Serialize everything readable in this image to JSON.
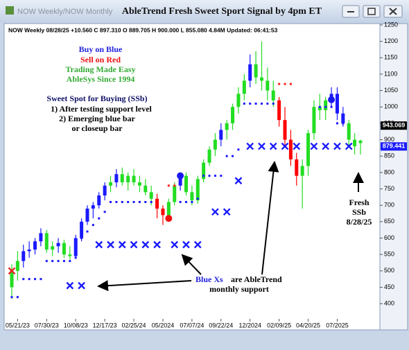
{
  "window": {
    "tabs": "NOW Weekly/NOW Monthly",
    "title": "AbleTrend Fresh Sweet Sport Signal by 4pm ET"
  },
  "chart_data": {
    "type": "candlestick",
    "info_line": "NOW  Weekly 08/28/25 +10.560 C 897.310 O 889.705 H 900.000 L 855.080 4.84M Updated: 06:41:53",
    "categories": [
      null,
      "05/21/23",
      null,
      null,
      null,
      null,
      "07/30/23",
      null,
      null,
      null,
      null,
      "10/08/23",
      null,
      null,
      null,
      null,
      "12/17/23",
      null,
      null,
      null,
      null,
      "02/25/24",
      null,
      null,
      null,
      null,
      "05/2024",
      null,
      null,
      null,
      null,
      "07/07/24",
      null,
      null,
      null,
      null,
      "09/22/24",
      null,
      null,
      null,
      null,
      "12/2024",
      null,
      null,
      null,
      null,
      "02/09/25",
      null,
      null,
      null,
      null,
      "04/20/25",
      null,
      null,
      null,
      null,
      "07/2025",
      null,
      null,
      null,
      null
    ],
    "candles": [
      {
        "o": 450,
        "h": 520,
        "l": 415,
        "c": 500,
        "color": "#22dd22"
      },
      {
        "o": 500,
        "h": 560,
        "l": 470,
        "c": 530,
        "color": "#22dd22"
      },
      {
        "o": 530,
        "h": 580,
        "l": 510,
        "c": 560,
        "color": "#1a1aff"
      },
      {
        "o": 560,
        "h": 590,
        "l": 540,
        "c": 565,
        "color": "#1a1aff"
      },
      {
        "o": 565,
        "h": 600,
        "l": 550,
        "c": 590,
        "color": "#1a1aff"
      },
      {
        "o": 590,
        "h": 630,
        "l": 575,
        "c": 615,
        "color": "#1a1aff"
      },
      {
        "o": 615,
        "h": 625,
        "l": 555,
        "c": 565,
        "color": "#22dd22"
      },
      {
        "o": 565,
        "h": 590,
        "l": 545,
        "c": 575,
        "color": "#22dd22"
      },
      {
        "o": 575,
        "h": 600,
        "l": 555,
        "c": 585,
        "color": "#1a1aff"
      },
      {
        "o": 585,
        "h": 595,
        "l": 540,
        "c": 550,
        "color": "#22dd22"
      },
      {
        "o": 550,
        "h": 575,
        "l": 535,
        "c": 545,
        "color": "#22dd22"
      },
      {
        "o": 545,
        "h": 610,
        "l": 540,
        "c": 600,
        "color": "#1a1aff"
      },
      {
        "o": 600,
        "h": 660,
        "l": 590,
        "c": 650,
        "color": "#1a1aff"
      },
      {
        "o": 650,
        "h": 700,
        "l": 640,
        "c": 690,
        "color": "#1a1aff"
      },
      {
        "o": 690,
        "h": 710,
        "l": 660,
        "c": 700,
        "color": "#1a1aff"
      },
      {
        "o": 700,
        "h": 740,
        "l": 690,
        "c": 730,
        "color": "#1a1aff"
      },
      {
        "o": 730,
        "h": 770,
        "l": 715,
        "c": 760,
        "color": "#1a1aff"
      },
      {
        "o": 760,
        "h": 790,
        "l": 740,
        "c": 770,
        "color": "#22dd22"
      },
      {
        "o": 770,
        "h": 810,
        "l": 755,
        "c": 795,
        "color": "#1a1aff"
      },
      {
        "o": 795,
        "h": 815,
        "l": 760,
        "c": 770,
        "color": "#22dd22"
      },
      {
        "o": 770,
        "h": 800,
        "l": 745,
        "c": 790,
        "color": "#22dd22"
      },
      {
        "o": 790,
        "h": 810,
        "l": 760,
        "c": 770,
        "color": "#22dd22"
      },
      {
        "o": 770,
        "h": 790,
        "l": 740,
        "c": 760,
        "color": "#22dd22"
      },
      {
        "o": 760,
        "h": 780,
        "l": 730,
        "c": 740,
        "color": "#22dd22"
      },
      {
        "o": 740,
        "h": 760,
        "l": 700,
        "c": 720,
        "color": "#22dd22"
      },
      {
        "o": 720,
        "h": 735,
        "l": 660,
        "c": 690,
        "color": "#ff0000"
      },
      {
        "o": 690,
        "h": 700,
        "l": 640,
        "c": 670,
        "color": "#ff0000"
      },
      {
        "o": 670,
        "h": 720,
        "l": 650,
        "c": 710,
        "color": "#22dd22"
      },
      {
        "o": 710,
        "h": 770,
        "l": 700,
        "c": 760,
        "color": "#22dd22"
      },
      {
        "o": 760,
        "h": 800,
        "l": 745,
        "c": 790,
        "color": "#1a1aff"
      },
      {
        "o": 790,
        "h": 800,
        "l": 730,
        "c": 740,
        "color": "#22dd22"
      },
      {
        "o": 740,
        "h": 760,
        "l": 700,
        "c": 715,
        "color": "#22dd22"
      },
      {
        "o": 715,
        "h": 790,
        "l": 705,
        "c": 780,
        "color": "#22dd22"
      },
      {
        "o": 780,
        "h": 840,
        "l": 770,
        "c": 830,
        "color": "#22dd22"
      },
      {
        "o": 830,
        "h": 880,
        "l": 820,
        "c": 870,
        "color": "#22dd22"
      },
      {
        "o": 870,
        "h": 920,
        "l": 850,
        "c": 900,
        "color": "#22dd22"
      },
      {
        "o": 900,
        "h": 950,
        "l": 880,
        "c": 930,
        "color": "#1a1aff"
      },
      {
        "o": 930,
        "h": 960,
        "l": 900,
        "c": 950,
        "color": "#22dd22"
      },
      {
        "o": 950,
        "h": 1010,
        "l": 930,
        "c": 1000,
        "color": "#22dd22"
      },
      {
        "o": 1000,
        "h": 1060,
        "l": 980,
        "c": 1040,
        "color": "#22dd22"
      },
      {
        "o": 1040,
        "h": 1100,
        "l": 1020,
        "c": 1080,
        "color": "#22dd22"
      },
      {
        "o": 1080,
        "h": 1160,
        "l": 1060,
        "c": 1130,
        "color": "#1a1aff"
      },
      {
        "o": 1130,
        "h": 1170,
        "l": 1070,
        "c": 1090,
        "color": "#22dd22"
      },
      {
        "o": 1090,
        "h": 1200,
        "l": 1050,
        "c": 1080,
        "color": "#22dd22"
      },
      {
        "o": 1080,
        "h": 1120,
        "l": 1020,
        "c": 1050,
        "color": "#22dd22"
      },
      {
        "o": 1050,
        "h": 1080,
        "l": 1000,
        "c": 1020,
        "color": "#22dd22"
      },
      {
        "o": 1020,
        "h": 1030,
        "l": 940,
        "c": 960,
        "color": "#ff0000"
      },
      {
        "o": 960,
        "h": 1000,
        "l": 880,
        "c": 900,
        "color": "#ff0000"
      },
      {
        "o": 900,
        "h": 930,
        "l": 820,
        "c": 840,
        "color": "#ff0000"
      },
      {
        "o": 840,
        "h": 860,
        "l": 760,
        "c": 790,
        "color": "#ff0000"
      },
      {
        "o": 790,
        "h": 840,
        "l": 690,
        "c": 820,
        "color": "#22dd22"
      },
      {
        "o": 820,
        "h": 930,
        "l": 790,
        "c": 920,
        "color": "#22dd22"
      },
      {
        "o": 920,
        "h": 1020,
        "l": 900,
        "c": 1000,
        "color": "#22dd22"
      },
      {
        "o": 1000,
        "h": 1040,
        "l": 960,
        "c": 990,
        "color": "#22dd22"
      },
      {
        "o": 990,
        "h": 1030,
        "l": 960,
        "c": 1020,
        "color": "#22dd22"
      },
      {
        "o": 1020,
        "h": 1060,
        "l": 1000,
        "c": 1040,
        "color": "#1a1aff"
      },
      {
        "o": 1040,
        "h": 1060,
        "l": 960,
        "c": 980,
        "color": "#1a1aff"
      },
      {
        "o": 980,
        "h": 1000,
        "l": 940,
        "c": 950,
        "color": "#1a1aff"
      },
      {
        "o": 950,
        "h": 960,
        "l": 880,
        "c": 900,
        "color": "#22dd22"
      },
      {
        "o": 900,
        "h": 920,
        "l": 855,
        "c": 880,
        "color": "#22dd22"
      },
      {
        "o": 889.705,
        "h": 900,
        "l": 855.08,
        "c": 897.31,
        "color": "#22dd22"
      }
    ],
    "support_dots": {
      "color": "#1a1aff",
      "values": [
        420,
        420,
        475,
        475,
        475,
        475,
        530,
        530,
        530,
        530,
        530,
        540,
        600,
        620,
        640,
        660,
        680,
        710,
        710,
        710,
        710,
        710,
        710,
        710,
        710,
        null,
        null,
        null,
        null,
        710,
        710,
        710,
        720,
        790,
        790,
        790,
        790,
        850,
        850,
        870,
        1010,
        1010,
        1010,
        1010,
        1010,
        1010,
        null,
        null,
        null,
        null,
        null,
        null,
        null,
        1000,
        1000,
        1000,
        950,
        950,
        null,
        null,
        null
      ]
    },
    "resistance_dots": {
      "color": "#ff2222",
      "values": [
        null,
        null,
        null,
        null,
        null,
        null,
        null,
        null,
        null,
        null,
        null,
        null,
        null,
        null,
        null,
        null,
        null,
        null,
        null,
        null,
        null,
        null,
        null,
        null,
        null,
        null,
        null,
        760,
        760,
        null,
        null,
        null,
        null,
        null,
        null,
        null,
        null,
        null,
        null,
        null,
        null,
        null,
        null,
        null,
        null,
        null,
        1070,
        1070,
        1070,
        null,
        null,
        null,
        null,
        null,
        null,
        null,
        null,
        null,
        null,
        null,
        null
      ]
    },
    "monthly_support": {
      "color": "#1a1aff",
      "values": [
        null,
        null,
        null,
        null,
        null,
        null,
        null,
        null,
        null,
        null,
        455,
        null,
        455,
        null,
        null,
        580,
        null,
        580,
        null,
        580,
        null,
        580,
        null,
        580,
        null,
        580,
        null,
        null,
        580,
        null,
        580,
        null,
        580,
        null,
        null,
        680,
        null,
        680,
        null,
        775,
        null,
        880,
        null,
        880,
        null,
        880,
        null,
        880,
        null,
        880,
        null,
        null,
        880,
        null,
        880,
        null,
        880,
        null,
        880,
        null,
        null
      ]
    },
    "monthly_resistance": {
      "color": "#ee2222",
      "values": [
        500,
        null,
        null,
        null,
        null,
        null,
        null,
        null,
        null,
        null,
        null,
        null,
        null,
        null,
        null,
        null,
        null,
        null,
        null,
        null,
        null,
        null,
        null,
        null,
        null,
        null,
        null,
        null,
        null,
        null,
        null,
        null,
        null,
        null,
        null,
        null,
        null,
        null,
        null,
        null,
        null,
        null,
        null,
        null,
        null,
        null,
        null,
        null,
        null,
        null,
        null,
        null,
        null,
        null,
        null,
        null,
        null,
        null,
        null,
        null,
        null
      ]
    },
    "buy_signals": {
      "color": "#1a1aee",
      "values": [
        null,
        null,
        null,
        null,
        null,
        null,
        null,
        null,
        null,
        null,
        null,
        null,
        null,
        null,
        null,
        null,
        null,
        null,
        null,
        null,
        null,
        null,
        null,
        null,
        null,
        null,
        null,
        null,
        null,
        790,
        null,
        null,
        null,
        null,
        null,
        null,
        null,
        null,
        null,
        null,
        null,
        null,
        null,
        null,
        null,
        null,
        null,
        null,
        null,
        null,
        null,
        null,
        null,
        null,
        null,
        1022,
        null,
        null,
        null,
        null,
        null
      ]
    },
    "sell_signals": {
      "color": "#ee1111",
      "values": [
        null,
        null,
        null,
        null,
        null,
        null,
        null,
        null,
        null,
        null,
        null,
        null,
        null,
        null,
        null,
        null,
        null,
        null,
        null,
        null,
        null,
        null,
        null,
        null,
        null,
        null,
        null,
        660,
        null,
        null,
        null,
        null,
        null,
        null,
        null,
        null,
        null,
        null,
        null,
        null,
        null,
        null,
        null,
        null,
        null,
        null,
        null,
        null,
        null,
        null,
        null,
        null,
        null,
        null,
        null,
        null,
        null,
        null,
        null,
        null,
        null
      ]
    },
    "ylim": [
      358,
      1250
    ],
    "yticks": [
      400,
      450,
      500,
      550,
      600,
      650,
      700,
      750,
      800,
      850,
      900,
      950,
      1000,
      1050,
      1100,
      1150,
      1200,
      1250
    ],
    "price_labels": [
      {
        "value": 943.069,
        "color": "#000000"
      },
      {
        "value": 879.441,
        "color": "#1a1aff"
      }
    ],
    "annotations": [
      {
        "text": "Buy on Blue",
        "color": "#2222dd"
      },
      {
        "text": "Sell on Red",
        "color": "#ee1111"
      },
      {
        "text": "Trading Made Easy",
        "color": "#33aa33"
      },
      {
        "text": "AbleSys Since 1994",
        "color": "#33aa33"
      },
      {
        "text": "Sweet Spot for Buying (SSb)",
        "color": "#111166"
      },
      {
        "text": "1) After testing support level",
        "color": "#000000"
      },
      {
        "text": "2) Emerging blue bar",
        "color": "#000000"
      },
      {
        "text": "or closeup bar",
        "color": "#000000"
      },
      {
        "text": "Blue Xs",
        "color": "#2222dd"
      },
      {
        "text": "are AbleTrend",
        "color": "#000000"
      },
      {
        "text": "monthly support",
        "color": "#000000"
      },
      {
        "text": "Fresh",
        "color": "#000000"
      },
      {
        "text": "SSb",
        "color": "#000000"
      },
      {
        "text": "8/28/25",
        "color": "#000000"
      }
    ]
  }
}
